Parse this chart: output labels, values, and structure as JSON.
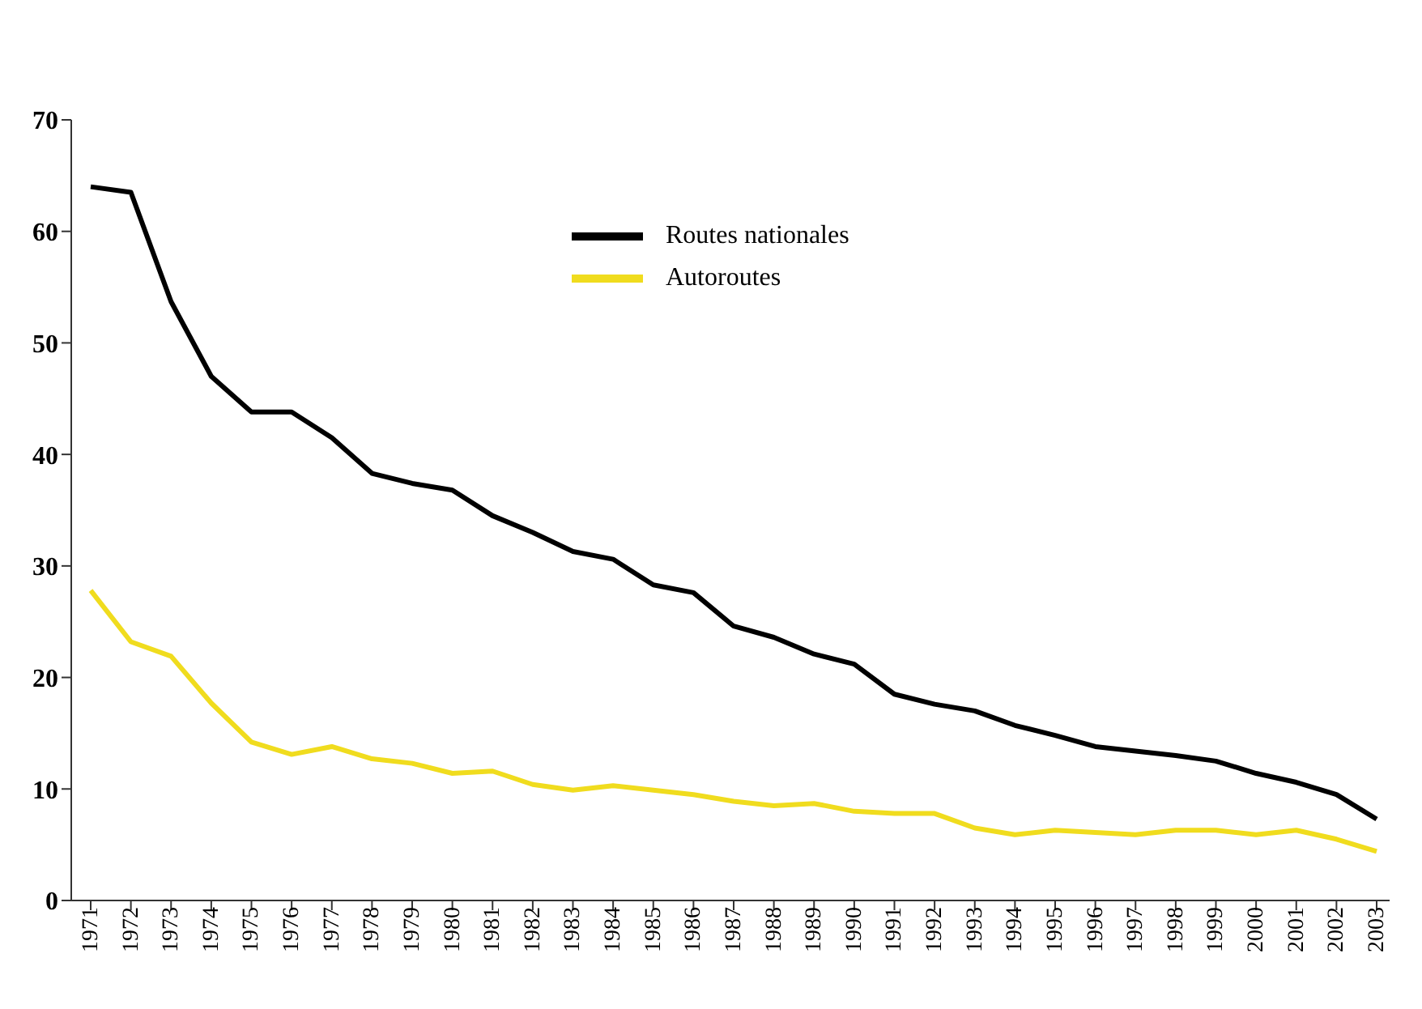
{
  "chart_data": {
    "type": "line",
    "categories": [
      "1971",
      "1972",
      "1973",
      "1974",
      "1975",
      "1976",
      "1977",
      "1978",
      "1979",
      "1980",
      "1981",
      "1982",
      "1983",
      "1984",
      "1985",
      "1986",
      "1987",
      "1988",
      "1989",
      "1990",
      "1991",
      "1992",
      "1993",
      "1994",
      "1995",
      "1996",
      "1997",
      "1998",
      "1999",
      "2000",
      "2001",
      "2002",
      "2003"
    ],
    "series": [
      {
        "name": "Routes nationales",
        "color": "#000000",
        "values": [
          64.0,
          63.5,
          53.7,
          47.0,
          43.8,
          43.8,
          41.5,
          38.3,
          37.4,
          36.8,
          34.5,
          33.0,
          31.3,
          30.6,
          28.3,
          27.6,
          24.6,
          23.6,
          22.1,
          21.2,
          18.5,
          17.6,
          17.0,
          15.7,
          14.8,
          13.8,
          13.4,
          13.0,
          12.5,
          11.4,
          10.6,
          9.5,
          7.3
        ]
      },
      {
        "name": "Autoroutes",
        "color": "#f0dc1e",
        "values": [
          27.8,
          23.2,
          21.9,
          17.7,
          14.2,
          13.1,
          13.8,
          12.7,
          12.3,
          11.4,
          11.6,
          10.4,
          9.9,
          10.3,
          9.9,
          9.5,
          8.9,
          8.5,
          8.7,
          8.0,
          7.8,
          7.8,
          6.5,
          5.9,
          6.3,
          6.1,
          5.9,
          6.3,
          6.3,
          5.9,
          6.3,
          5.5,
          4.4
        ]
      }
    ],
    "ylim": [
      0,
      70
    ],
    "yticks": [
      0,
      10,
      20,
      30,
      40,
      50,
      60,
      70
    ],
    "grid": false,
    "legend": "top",
    "marker": "none",
    "line_style": "solid"
  }
}
